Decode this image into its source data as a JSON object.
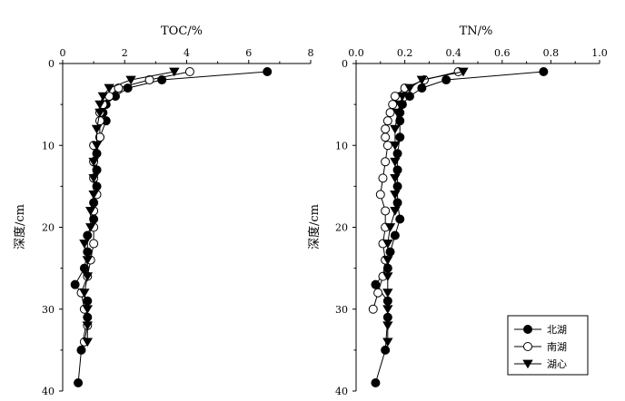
{
  "chart_data": [
    {
      "type": "line",
      "title": "TOC/%",
      "ylabel": "深度/cm",
      "xlim": [
        0,
        8
      ],
      "ylim": [
        0,
        40
      ],
      "y_inverted": true,
      "x_axis_position": "top",
      "xticks": [
        "0",
        "2",
        "4",
        "6",
        "8"
      ],
      "yticks": [
        "0",
        "10",
        "20",
        "30",
        "40"
      ],
      "series": [
        {
          "name": "北湖",
          "marker": "filled-circle",
          "points": [
            [
              6.6,
              1
            ],
            [
              3.2,
              2
            ],
            [
              2.1,
              3
            ],
            [
              1.7,
              4
            ],
            [
              1.4,
              5
            ],
            [
              1.3,
              6
            ],
            [
              1.4,
              7
            ],
            [
              1.2,
              9
            ],
            [
              1.1,
              11
            ],
            [
              1.1,
              13
            ],
            [
              1.1,
              15
            ],
            [
              1.0,
              17
            ],
            [
              1.0,
              19
            ],
            [
              0.8,
              21
            ],
            [
              0.8,
              23
            ],
            [
              0.7,
              25
            ],
            [
              0.4,
              27
            ],
            [
              0.8,
              29
            ],
            [
              0.8,
              31
            ],
            [
              0.6,
              35
            ],
            [
              0.5,
              39
            ]
          ]
        },
        {
          "name": "南湖",
          "marker": "open-circle",
          "points": [
            [
              4.1,
              1
            ],
            [
              2.8,
              2
            ],
            [
              1.8,
              3
            ],
            [
              1.5,
              4
            ],
            [
              1.3,
              5
            ],
            [
              1.2,
              6
            ],
            [
              1.2,
              7
            ],
            [
              1.2,
              9
            ],
            [
              1.0,
              10
            ],
            [
              1.0,
              12
            ],
            [
              1.0,
              14
            ],
            [
              1.1,
              16
            ],
            [
              1.0,
              18
            ],
            [
              1.0,
              20
            ],
            [
              1.0,
              22
            ],
            [
              0.9,
              24
            ],
            [
              0.8,
              26
            ],
            [
              0.6,
              28
            ],
            [
              0.7,
              30
            ],
            [
              0.8,
              32
            ],
            [
              0.7,
              34
            ]
          ]
        },
        {
          "name": "湖心",
          "marker": "filled-triangle-down",
          "points": [
            [
              3.6,
              1
            ],
            [
              2.2,
              2
            ],
            [
              1.5,
              3
            ],
            [
              1.3,
              4
            ],
            [
              1.2,
              5
            ],
            [
              1.2,
              6
            ],
            [
              1.1,
              8
            ],
            [
              1.1,
              10
            ],
            [
              1.0,
              12
            ],
            [
              1.0,
              14
            ],
            [
              1.0,
              16
            ],
            [
              0.9,
              18
            ],
            [
              0.9,
              20
            ],
            [
              0.7,
              22
            ],
            [
              0.8,
              24
            ],
            [
              0.8,
              26
            ],
            [
              0.7,
              28
            ],
            [
              0.8,
              30
            ],
            [
              0.8,
              32
            ],
            [
              0.8,
              34
            ]
          ]
        }
      ]
    },
    {
      "type": "line",
      "title": "TN/%",
      "ylabel": "深度/cm",
      "xlim": [
        0,
        1.0
      ],
      "ylim": [
        0,
        40
      ],
      "y_inverted": true,
      "x_axis_position": "top",
      "xticks": [
        "0.0",
        "0.2",
        "0.4",
        "0.6",
        "0.8",
        "1.0"
      ],
      "yticks": [
        "0",
        "10",
        "20",
        "30",
        "40"
      ],
      "series": [
        {
          "name": "北湖",
          "marker": "filled-circle",
          "points": [
            [
              0.77,
              1
            ],
            [
              0.37,
              2
            ],
            [
              0.27,
              3
            ],
            [
              0.22,
              4
            ],
            [
              0.19,
              5
            ],
            [
              0.18,
              6
            ],
            [
              0.18,
              7
            ],
            [
              0.18,
              9
            ],
            [
              0.17,
              11
            ],
            [
              0.17,
              13
            ],
            [
              0.17,
              15
            ],
            [
              0.17,
              17
            ],
            [
              0.18,
              19
            ],
            [
              0.16,
              21
            ],
            [
              0.14,
              23
            ],
            [
              0.13,
              25
            ],
            [
              0.08,
              27
            ],
            [
              0.13,
              29
            ],
            [
              0.13,
              31
            ],
            [
              0.12,
              35
            ],
            [
              0.08,
              39
            ]
          ]
        },
        {
          "name": "南湖",
          "marker": "open-circle",
          "points": [
            [
              0.42,
              1
            ],
            [
              0.28,
              2
            ],
            [
              0.2,
              3
            ],
            [
              0.16,
              4
            ],
            [
              0.15,
              5
            ],
            [
              0.14,
              6
            ],
            [
              0.13,
              7
            ],
            [
              0.12,
              8
            ],
            [
              0.12,
              9
            ],
            [
              0.13,
              10
            ],
            [
              0.12,
              12
            ],
            [
              0.11,
              14
            ],
            [
              0.1,
              16
            ],
            [
              0.12,
              18
            ],
            [
              0.12,
              20
            ],
            [
              0.11,
              22
            ],
            [
              0.12,
              24
            ],
            [
              0.11,
              26
            ],
            [
              0.09,
              28
            ],
            [
              0.07,
              30
            ]
          ]
        },
        {
          "name": "湖心",
          "marker": "filled-triangle-down",
          "points": [
            [
              0.44,
              1
            ],
            [
              0.27,
              2
            ],
            [
              0.22,
              3
            ],
            [
              0.19,
              4
            ],
            [
              0.18,
              5
            ],
            [
              0.17,
              6
            ],
            [
              0.16,
              8
            ],
            [
              0.16,
              10
            ],
            [
              0.16,
              12
            ],
            [
              0.16,
              14
            ],
            [
              0.16,
              16
            ],
            [
              0.16,
              18
            ],
            [
              0.14,
              20
            ],
            [
              0.13,
              22
            ],
            [
              0.13,
              24
            ],
            [
              0.13,
              26
            ],
            [
              0.13,
              28
            ],
            [
              0.13,
              30
            ],
            [
              0.13,
              32
            ],
            [
              0.13,
              34
            ]
          ]
        }
      ]
    }
  ],
  "legend": {
    "position": "bottom-right",
    "entries": [
      {
        "label": "北湖",
        "marker": "filled-circle"
      },
      {
        "label": "南湖",
        "marker": "open-circle"
      },
      {
        "label": "湖心",
        "marker": "filled-triangle-down"
      }
    ]
  }
}
